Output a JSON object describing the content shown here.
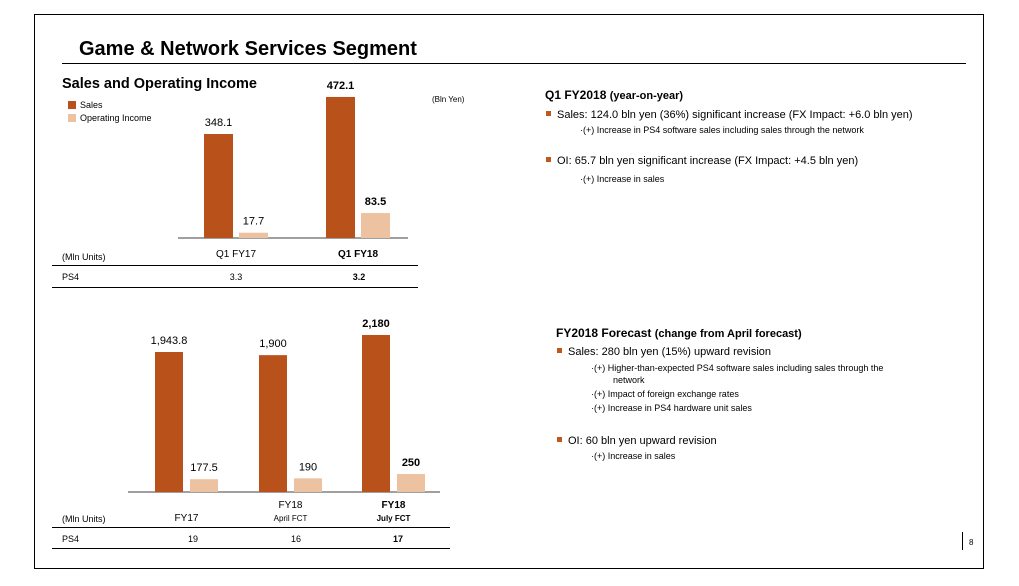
{
  "page": {
    "title": "Game & Network Services Segment",
    "page_number": "8"
  },
  "colors": {
    "sales": "#b8521a",
    "oi": "#ecc2a1"
  },
  "top_chart": {
    "subtitle": "Sales and Operating Income",
    "legend": [
      "Sales",
      "Operating Income"
    ],
    "unit": "(Bln Yen)",
    "table_unit": "(Mln Units)",
    "table_row_label": "PS4",
    "table_values": [
      "3.3",
      "3.2"
    ]
  },
  "bottom_chart": {
    "table_unit": "(Mln Units)",
    "category_subs": [
      "",
      "April FCT",
      "July FCT"
    ],
    "table_row_label": "PS4",
    "table_values": [
      "19",
      "16",
      "17"
    ]
  },
  "chart_data": [
    {
      "type": "bar",
      "title": "Sales and Operating Income",
      "ylabel": "(Bln Yen)",
      "categories": [
        "Q1 FY17",
        "Q1 FY18"
      ],
      "series": [
        {
          "name": "Sales",
          "values": [
            348.1,
            472.1
          ],
          "labels": [
            "348.1",
            "472.1"
          ]
        },
        {
          "name": "Operating Income",
          "values": [
            17.7,
            83.5
          ],
          "labels": [
            "17.7",
            "83.5"
          ]
        }
      ],
      "legend_position": "top-left",
      "grid": false
    },
    {
      "type": "bar",
      "categories": [
        "FY17",
        "FY18",
        "FY18"
      ],
      "series": [
        {
          "name": "Sales",
          "values": [
            1943.8,
            1900,
            2180
          ],
          "labels": [
            "1,943.8",
            "1,900",
            "2,180"
          ]
        },
        {
          "name": "Operating Income",
          "values": [
            177.5,
            190,
            250
          ],
          "labels": [
            "177.5",
            "190",
            "250"
          ]
        }
      ],
      "grid": false
    }
  ],
  "q1_section": {
    "heading": "Q1 FY2018",
    "heading_sub": "(year-on-year)",
    "items": [
      {
        "text": "Sales: 124.0 bln yen (36%) significant increase (FX Impact:  +6.0 bln yen)",
        "subs": [
          "·(+)  Increase in PS4 software sales including sales through the network"
        ]
      },
      {
        "text": "OI: 65.7 bln yen significant increase (FX Impact:  +4.5 bln yen)",
        "subs": [
          "·(+)  Increase in sales"
        ]
      }
    ]
  },
  "forecast_section": {
    "heading": "FY2018 Forecast",
    "heading_sub": "(change from April forecast)",
    "items": [
      {
        "text": "Sales: 280 bln yen (15%) upward revision",
        "subs": [
          "·(+)  Higher-than-expected PS4 software sales including sales through the",
          "network",
          "·(+)  Impact of foreign exchange rates",
          "·(+)  Increase in PS4 hardware unit sales"
        ]
      },
      {
        "text": "OI: 60 bln yen upward revision",
        "subs": [
          "·(+)  Increase in sales"
        ]
      }
    ]
  }
}
